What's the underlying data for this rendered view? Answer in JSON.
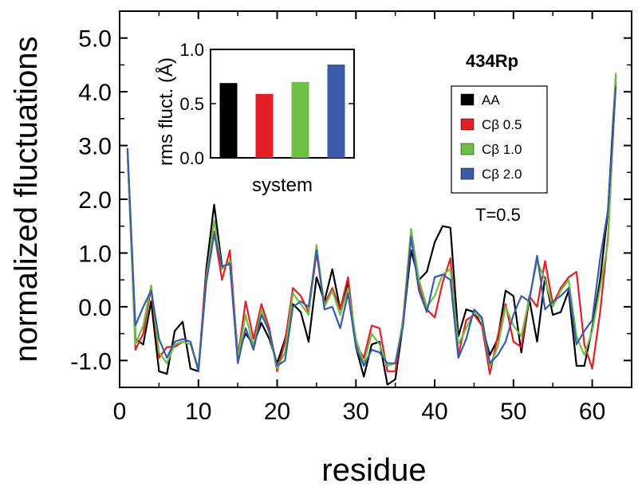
{
  "chart_data": [
    {
      "type": "line",
      "title": "",
      "xlabel": "residue",
      "ylabel": "normalized fluctuations",
      "xlim": [
        0,
        65
      ],
      "ylim": [
        -1.5,
        5.5
      ],
      "xticks": [
        0,
        10,
        20,
        30,
        40,
        50,
        60
      ],
      "xtick_labels": [
        "0",
        "10",
        "20",
        "30",
        "40",
        "50",
        "60"
      ],
      "yticks": [
        -1,
        0,
        1,
        2,
        3,
        4,
        5
      ],
      "ytick_labels": [
        "-1.0",
        "0.0",
        "1.0",
        "2.0",
        "3.0",
        "4.0",
        "5.0"
      ],
      "annotations": [
        "434Rp",
        "T=0.5"
      ],
      "legend_position": "right",
      "series": [
        {
          "name": "AA",
          "color": "#000000",
          "x": [
            1,
            2,
            3,
            4,
            5,
            6,
            7,
            8,
            9,
            10,
            11,
            12,
            13,
            14,
            15,
            16,
            17,
            18,
            19,
            20,
            21,
            22,
            23,
            24,
            25,
            26,
            27,
            28,
            29,
            30,
            31,
            32,
            33,
            34,
            35,
            36,
            37,
            38,
            39,
            40,
            41,
            42,
            43,
            44,
            45,
            46,
            47,
            48,
            49,
            50,
            51,
            52,
            53,
            54,
            55,
            56,
            57,
            58,
            59,
            60,
            61,
            62,
            63
          ],
          "values": [
            2.9,
            -0.6,
            -0.7,
            0.1,
            -1.2,
            -1.25,
            -0.45,
            -0.28,
            -1.15,
            -1.2,
            0.7,
            1.9,
            0.75,
            0.8,
            -0.85,
            -0.5,
            -0.7,
            -0.3,
            -0.6,
            -1.05,
            -0.6,
            0.05,
            -0.1,
            -0.65,
            0.55,
            0.1,
            0.7,
            -0.05,
            0.45,
            -0.75,
            -1.3,
            -0.7,
            -0.65,
            -1.45,
            -1.35,
            -0.3,
            1.05,
            0.5,
            0.65,
            1.2,
            1.5,
            1.47,
            -0.55,
            -0.05,
            -0.1,
            -0.35,
            -0.9,
            -0.6,
            0.3,
            0.2,
            -0.85,
            0.15,
            -0.65,
            0.55,
            -0.15,
            -0.1,
            0.3,
            -1.1,
            -1.1,
            -0.4,
            0.5,
            1.8,
            4.3
          ]
        },
        {
          "name": "Cβ 0.5",
          "color": "#e31e24",
          "x": [
            1,
            2,
            3,
            4,
            5,
            6,
            7,
            8,
            9,
            10,
            11,
            12,
            13,
            14,
            15,
            16,
            17,
            18,
            19,
            20,
            21,
            22,
            23,
            24,
            25,
            26,
            27,
            28,
            29,
            30,
            31,
            32,
            33,
            34,
            35,
            36,
            37,
            38,
            39,
            40,
            41,
            42,
            43,
            44,
            45,
            46,
            47,
            48,
            49,
            50,
            51,
            52,
            53,
            54,
            55,
            56,
            57,
            58,
            59,
            60,
            61,
            62,
            63
          ],
          "values": [
            2.9,
            -0.8,
            -0.5,
            0.35,
            -0.95,
            -0.75,
            -0.75,
            -0.65,
            -0.7,
            -1.15,
            0.6,
            1.4,
            0.5,
            1.05,
            -0.95,
            0.1,
            -0.6,
            0.05,
            -0.4,
            -1.2,
            -0.65,
            0.35,
            0.2,
            -0.1,
            1.0,
            0.05,
            0.35,
            -0.05,
            0.55,
            -0.7,
            -0.95,
            -0.35,
            -0.4,
            -1.2,
            -1.2,
            -0.2,
            1.4,
            0.4,
            -0.05,
            -0.2,
            0.45,
            0.9,
            -0.9,
            -0.25,
            -0.15,
            -0.35,
            -1.25,
            -0.55,
            0.05,
            -0.65,
            -0.75,
            0.2,
            0.0,
            0.85,
            0.05,
            0.35,
            0.55,
            0.65,
            -0.7,
            -1.15,
            -0.1,
            1.3,
            4.2
          ]
        },
        {
          "name": "Cβ 1.0",
          "color": "#6dbf46",
          "x": [
            1,
            2,
            3,
            4,
            5,
            6,
            7,
            8,
            9,
            10,
            11,
            12,
            13,
            14,
            15,
            16,
            17,
            18,
            19,
            20,
            21,
            22,
            23,
            24,
            25,
            26,
            27,
            28,
            29,
            30,
            31,
            32,
            33,
            34,
            35,
            36,
            37,
            38,
            39,
            40,
            41,
            42,
            43,
            44,
            45,
            46,
            47,
            48,
            49,
            50,
            51,
            52,
            53,
            54,
            55,
            56,
            57,
            58,
            59,
            60,
            61,
            62,
            63
          ],
          "values": [
            2.85,
            -0.7,
            -0.35,
            0.4,
            -0.85,
            -1.05,
            -0.7,
            -0.65,
            -0.7,
            -1.15,
            0.5,
            1.6,
            0.7,
            0.85,
            -0.95,
            -0.15,
            -0.75,
            -0.05,
            -0.5,
            -1.15,
            -0.85,
            0.25,
            0.05,
            -0.15,
            1.15,
            0.0,
            0.3,
            -0.15,
            0.35,
            -0.6,
            -1.05,
            -0.5,
            -0.7,
            -1.1,
            -1.05,
            -0.25,
            1.45,
            0.5,
            0.0,
            0.2,
            0.6,
            0.7,
            -0.7,
            -0.4,
            -0.1,
            -0.25,
            -1.1,
            -0.75,
            0.0,
            -0.35,
            -0.55,
            0.15,
            0.85,
            0.5,
            0.0,
            0.3,
            0.5,
            -0.55,
            -0.9,
            -0.45,
            0.35,
            1.2,
            4.35
          ]
        },
        {
          "name": "Cβ 2.0",
          "color": "#3a5ba8",
          "x": [
            1,
            2,
            3,
            4,
            5,
            6,
            7,
            8,
            9,
            10,
            11,
            12,
            13,
            14,
            15,
            16,
            17,
            18,
            19,
            20,
            21,
            22,
            23,
            24,
            25,
            26,
            27,
            28,
            29,
            30,
            31,
            32,
            33,
            34,
            35,
            36,
            37,
            38,
            39,
            40,
            41,
            42,
            43,
            44,
            45,
            46,
            47,
            48,
            49,
            50,
            51,
            52,
            53,
            54,
            55,
            56,
            57,
            58,
            59,
            60,
            61,
            62,
            63
          ],
          "values": [
            2.95,
            -0.35,
            0.0,
            0.3,
            -0.6,
            -0.95,
            -0.65,
            -0.6,
            -0.65,
            -1.2,
            0.45,
            1.35,
            0.75,
            0.8,
            -1.05,
            -0.4,
            -0.8,
            -0.15,
            -0.45,
            -1.1,
            -1.0,
            0.0,
            0.1,
            0.0,
            1.05,
            -0.05,
            0.0,
            -0.4,
            0.25,
            -0.75,
            -1.1,
            -0.8,
            -0.85,
            -1.05,
            -1.05,
            -0.35,
            1.3,
            0.3,
            -0.1,
            0.55,
            0.6,
            0.5,
            -0.95,
            -0.6,
            -0.05,
            -0.2,
            -1.05,
            -0.9,
            -0.65,
            -0.15,
            0.2,
            0.1,
            0.95,
            -0.05,
            0.1,
            0.2,
            0.35,
            -0.7,
            -0.45,
            -0.25,
            0.9,
            1.8,
            4.1
          ]
        }
      ]
    },
    {
      "type": "bar",
      "title": "",
      "xlabel": "system",
      "ylabel": "rms fluct. (Å)",
      "ylim": [
        0,
        1.0
      ],
      "yticks": [
        0.0,
        0.5,
        1.0
      ],
      "ytick_labels": [
        "0.0",
        "0.5",
        "1.0"
      ],
      "categories": [
        "AA",
        "Cβ 0.5",
        "Cβ 1.0",
        "Cβ 2.0"
      ],
      "values": [
        0.69,
        0.59,
        0.7,
        0.86
      ],
      "colors": [
        "#000000",
        "#e31e24",
        "#6dbf46",
        "#3a5ba8"
      ]
    }
  ]
}
